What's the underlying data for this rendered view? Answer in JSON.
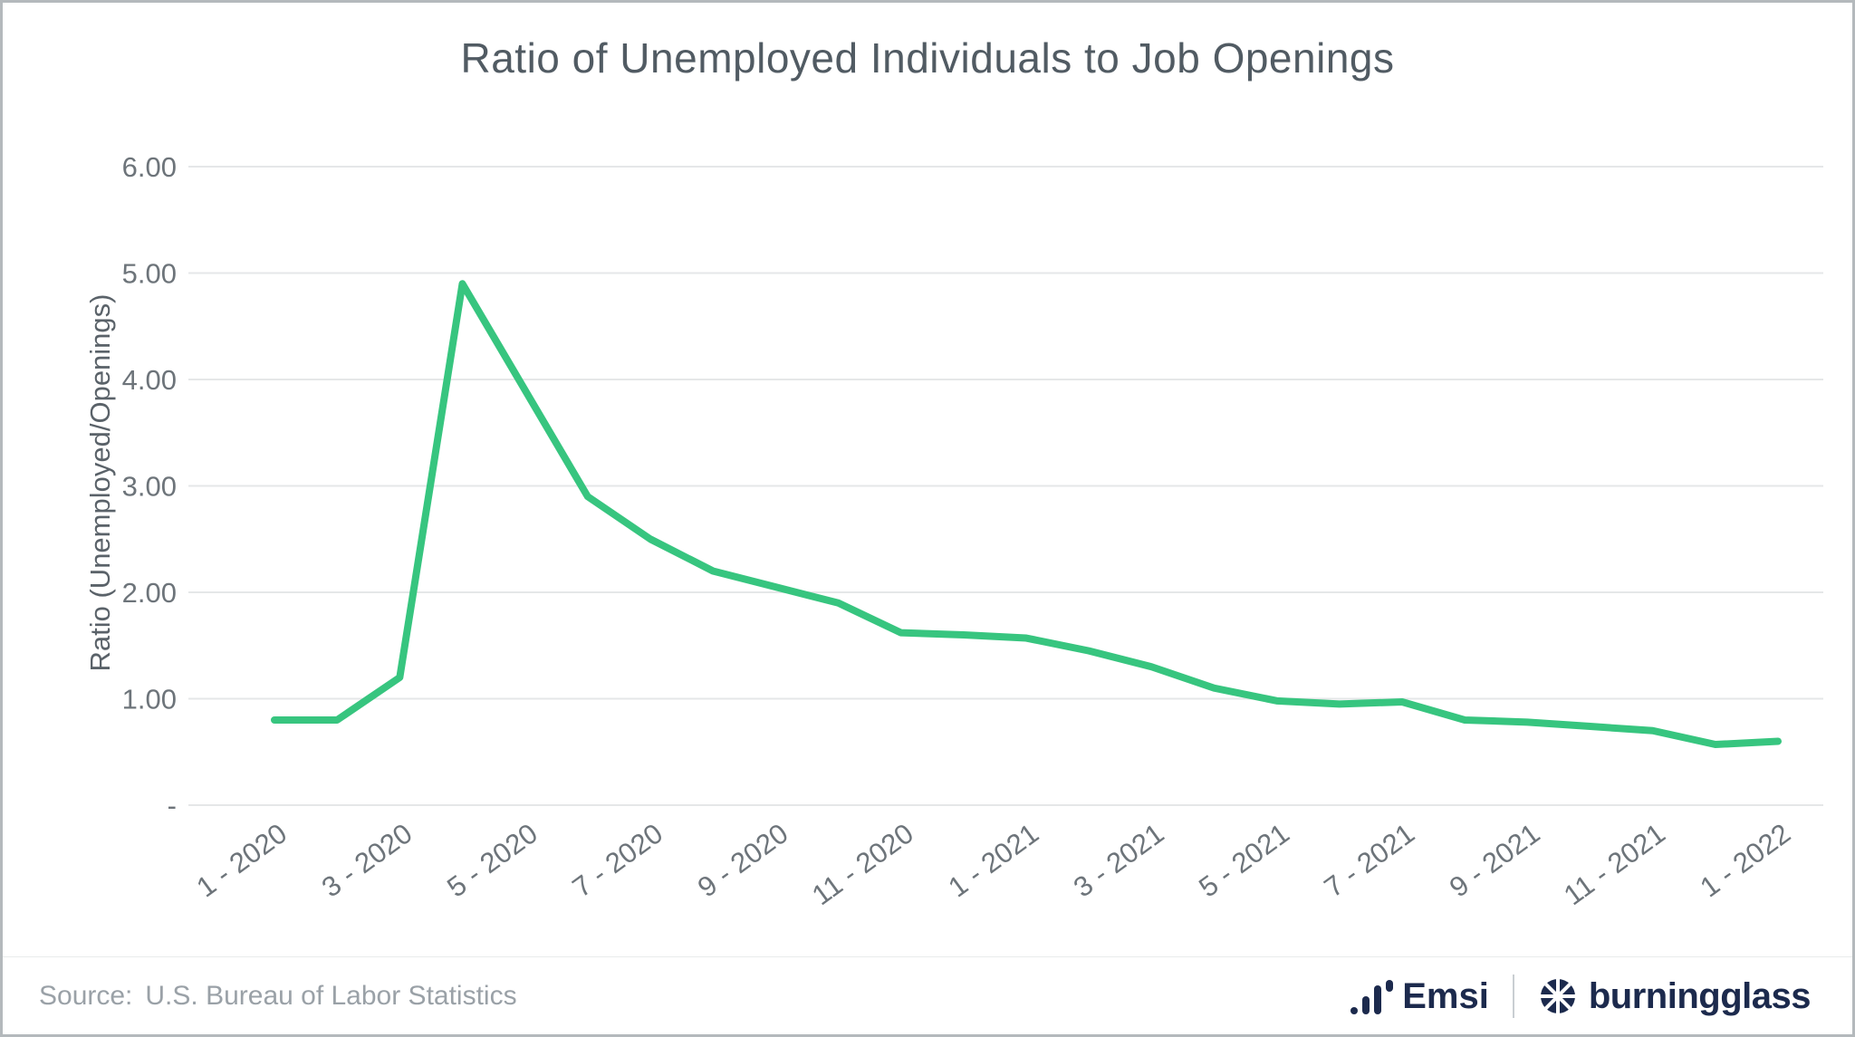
{
  "chart_data": {
    "type": "line",
    "title": "Ratio of Unemployed Individuals to Job Openings",
    "xlabel": "",
    "ylabel": "Ratio (Unemployed/Openings)",
    "x": [
      "1 - 2020",
      "2 - 2020",
      "3 - 2020",
      "4 - 2020",
      "5 - 2020",
      "6 - 2020",
      "7 - 2020",
      "8 - 2020",
      "9 - 2020",
      "10 - 2020",
      "11 - 2020",
      "12 - 2020",
      "1 - 2021",
      "2 - 2021",
      "3 - 2021",
      "4 - 2021",
      "5 - 2021",
      "6 - 2021",
      "7 - 2021",
      "8 - 2021",
      "9 - 2021",
      "10 - 2021",
      "11 - 2021",
      "12 - 2021",
      "1 - 2022"
    ],
    "values": [
      0.8,
      0.8,
      1.2,
      4.9,
      3.9,
      2.9,
      2.5,
      2.2,
      2.05,
      1.9,
      1.62,
      1.6,
      1.57,
      1.45,
      1.3,
      1.1,
      0.98,
      0.95,
      0.97,
      0.8,
      0.78,
      0.74,
      0.7,
      0.57,
      0.6
    ],
    "x_tick_every": 2,
    "x_tick_labels": [
      "1 - 2020",
      "3 - 2020",
      "5 - 2020",
      "7 - 2020",
      "9 - 2020",
      "11 - 2020",
      "1 - 2021",
      "3 - 2021",
      "5 - 2021",
      "7 - 2021",
      "9 - 2021",
      "11 - 2021",
      "1 - 2022"
    ],
    "y_ticks": [
      0,
      1,
      2,
      3,
      4,
      5,
      6
    ],
    "y_tick_labels": [
      "-",
      "1.00",
      "2.00",
      "3.00",
      "4.00",
      "5.00",
      "6.00"
    ],
    "ylim": [
      0,
      6
    ],
    "grid": "horizontal",
    "legend": false,
    "line_color": "#37c57f",
    "grid_color": "#e5e7e8",
    "axis_color": "#6d747a"
  },
  "footer": {
    "source_label": "Source:",
    "source_text": "U.S. Bureau of Labor Statistics",
    "emsi": "Emsi",
    "burningglass": "burningglass",
    "brand_color": "#1c2a4d"
  }
}
